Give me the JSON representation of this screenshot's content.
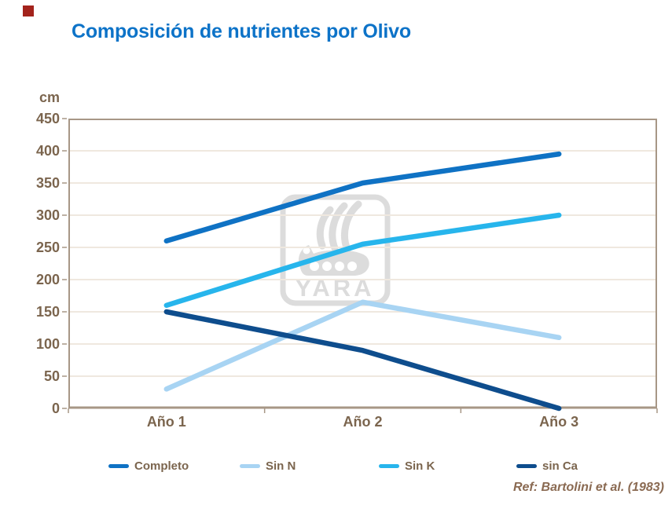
{
  "slide": {
    "title": "Composición de nutrientes por Olivo",
    "reference": "Ref: Bartolini et al. (1983)",
    "corner_marker_color": "#a3231c"
  },
  "colors": {
    "title": "#0d73c8",
    "axis_text": "#7b654e",
    "axis_frame": "#a79786",
    "gridline": "#efe8df",
    "reference_text": "#8a6a52",
    "watermark": "#d9d9d9"
  },
  "watermark": {
    "icon": "yara-viking-ship-logo",
    "text": "YARA"
  },
  "chart_data": {
    "type": "line",
    "title": "Composición de nutrientes por Olivo",
    "unit_label": "cm",
    "xlabel": "",
    "ylabel": "cm",
    "categories": [
      "Año 1",
      "Año 2",
      "Año 3"
    ],
    "series": [
      {
        "name": "Completo",
        "color": "#0f72c4",
        "values": [
          260,
          350,
          395
        ]
      },
      {
        "name": "Sin N",
        "color": "#a8d4f3",
        "values": [
          30,
          165,
          110
        ]
      },
      {
        "name": "Sin K",
        "color": "#27b5ec",
        "values": [
          160,
          255,
          300
        ]
      },
      {
        "name": "sin Ca",
        "color": "#0e4d8d",
        "values": [
          150,
          90,
          0
        ]
      }
    ],
    "ylim": [
      0,
      450
    ],
    "ytick_step": 50,
    "grid": true,
    "legend_position": "bottom"
  }
}
